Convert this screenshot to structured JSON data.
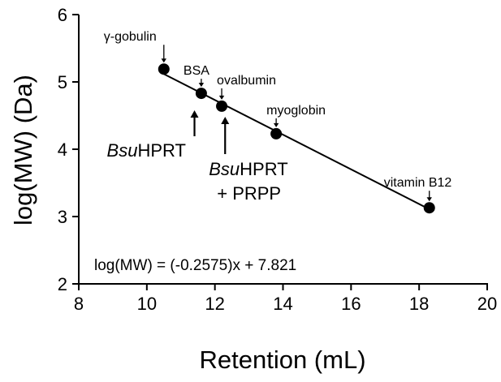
{
  "chart_data": {
    "type": "scatter",
    "title": "",
    "xlabel": "Retention (mL)",
    "ylabel": "log(MW) (Da)",
    "xlim": [
      8,
      20
    ],
    "ylim": [
      2,
      6
    ],
    "xticks": [
      8,
      10,
      12,
      14,
      16,
      18,
      20
    ],
    "yticks": [
      2,
      3,
      4,
      5,
      6
    ],
    "grid": false,
    "points": [
      {
        "name": "γ-gobulin",
        "x": 10.5,
        "y": 5.19
      },
      {
        "name": "BSA",
        "x": 11.6,
        "y": 4.83
      },
      {
        "name": "ovalbumin",
        "x": 12.2,
        "y": 4.64
      },
      {
        "name": "myoglobin",
        "x": 13.8,
        "y": 4.23
      },
      {
        "name": "vitamin B12",
        "x": 18.3,
        "y": 3.13
      }
    ],
    "fit_line": {
      "slope": -0.2575,
      "intercept": 7.821,
      "x_range": [
        10.5,
        18.3
      ]
    },
    "markers": [
      {
        "label_italic": "Bsu",
        "label_rest": "HPRT",
        "label_line2": "",
        "x": 11.4
      },
      {
        "label_italic": "Bsu",
        "label_rest": "HPRT",
        "label_line2": "+ PRPP",
        "x": 12.3
      }
    ],
    "equation": "log(MW) = (-0.2575)x + 7.821"
  }
}
